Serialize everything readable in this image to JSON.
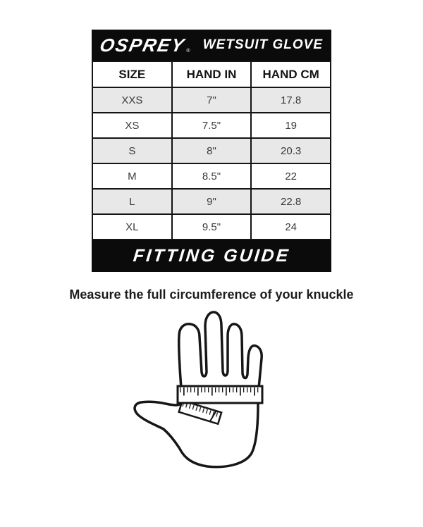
{
  "brand": {
    "logo_text": "OSPREY",
    "registered_mark": "®",
    "product_title": "WETSUIT GLOVE"
  },
  "chart_data": {
    "type": "table",
    "title": "WETSUIT GLOVE",
    "columns": [
      "SIZE",
      "HAND IN",
      "HAND CM"
    ],
    "rows": [
      [
        "XXS",
        "7\"",
        "17.8"
      ],
      [
        "XS",
        "7.5\"",
        "19"
      ],
      [
        "S",
        "8\"",
        "20.3"
      ],
      [
        "M",
        "8.5\"",
        "22"
      ],
      [
        "L",
        "9\"",
        "22.8"
      ],
      [
        "XL",
        "9.5\"",
        "24"
      ]
    ],
    "shaded_row_indices": [
      0,
      2,
      4
    ]
  },
  "fitting_guide": {
    "title": "FITTING GUIDE",
    "instruction": "Measure the full circumference of your knuckle"
  },
  "illustration": {
    "name": "hand-with-measuring-tape-around-knuckles"
  },
  "colors": {
    "bar_black": "#0b0b0b",
    "row_shade": "#e8e8e8",
    "table_border": "#141414",
    "outline": "#161616",
    "background": "#ffffff"
  }
}
